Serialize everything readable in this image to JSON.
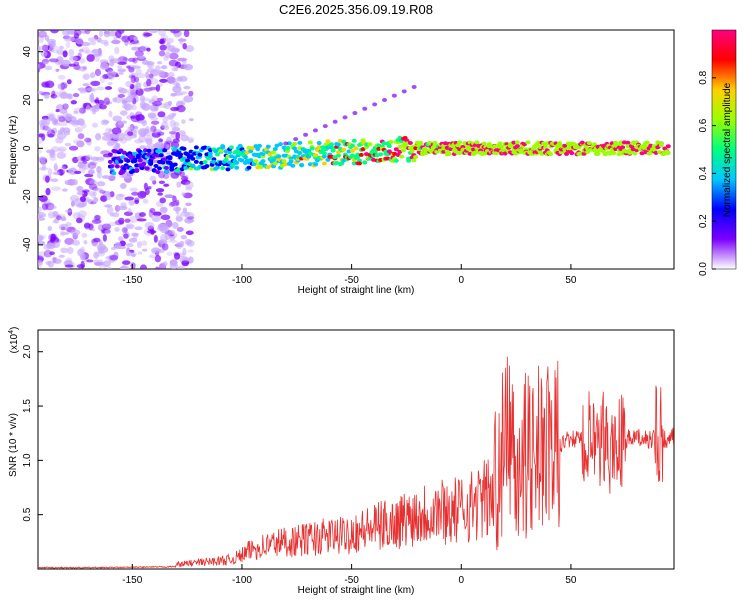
{
  "title": "C2E6.2025.356.09.19.R08",
  "chart_data": [
    {
      "type": "heatmap",
      "xlabel": "Height of straight line (km)",
      "ylabel": "Frequency (Hz)",
      "xlim": [
        -193,
        97
      ],
      "ylim": [
        -50,
        49
      ],
      "xticks": [
        -150,
        -100,
        -50,
        0,
        50
      ],
      "yticks": [
        -40,
        -20,
        0,
        20,
        40
      ],
      "colorbar": {
        "label": "Normalized spectral amplitude",
        "range": [
          0,
          1
        ],
        "ticks": [
          "0.0",
          "0.2",
          "0.4",
          "0.6",
          "0.8"
        ],
        "colors": [
          "#ffffff",
          "#7b00ff",
          "#0000ff",
          "#00c8ff",
          "#00ff80",
          "#9aff00",
          "#ffd000",
          "#ff0000",
          "#ff0080"
        ]
      },
      "ridge": {
        "description_points_x": [
          -160,
          -140,
          -120,
          -100,
          -80,
          -60,
          -40,
          -20,
          0,
          20,
          40,
          60,
          80,
          95
        ],
        "description_points_y": [
          -6,
          -5,
          -4,
          -4,
          -3,
          -2,
          -1,
          0,
          0,
          0,
          0,
          0,
          0,
          0
        ]
      }
    },
    {
      "type": "line",
      "xlabel": "Height of straight line (km)",
      "ylabel": "SNR (10 * v/v)",
      "y_scale_label": "(x10",
      "y_scale_exp": "4",
      "y_scale_close": ")",
      "xlim": [
        -193,
        97
      ],
      "ylim": [
        0,
        2.2
      ],
      "xticks": [
        -150,
        -100,
        -50,
        0,
        50
      ],
      "yticks": [
        "0.5",
        "1.0",
        "1.5",
        "2.0"
      ],
      "series": [
        {
          "color": "#e83030",
          "x": [
            -193,
            -170,
            -150,
            -135,
            -125,
            -115,
            -105,
            -100,
            -95,
            -90,
            -85,
            -80,
            -75,
            -70,
            -65,
            -60,
            -55,
            -50,
            -45,
            -40,
            -35,
            -30,
            -25,
            -20,
            -15,
            -10,
            -5,
            0,
            5,
            10,
            15,
            18,
            20,
            22,
            25,
            30,
            35,
            38,
            40,
            45,
            50,
            55,
            60,
            62,
            65,
            68,
            72,
            75,
            80,
            85,
            90,
            95,
            97
          ],
          "y": [
            0.02,
            0.02,
            0.03,
            0.04,
            0.06,
            0.08,
            0.1,
            0.15,
            0.22,
            0.25,
            0.28,
            0.3,
            0.3,
            0.33,
            0.34,
            0.36,
            0.36,
            0.4,
            0.42,
            0.45,
            0.48,
            0.5,
            0.55,
            0.6,
            0.62,
            0.65,
            0.62,
            0.65,
            0.7,
            0.75,
            0.8,
            1.0,
            1.1,
            1.25,
            1.1,
            1.0,
            1.2,
            1.05,
            1.1,
            1.15,
            1.2,
            1.18,
            1.2,
            1.0,
            1.2,
            1.1,
            1.18,
            1.2,
            1.2,
            1.2,
            1.2,
            1.2,
            1.22
          ]
        }
      ]
    }
  ]
}
